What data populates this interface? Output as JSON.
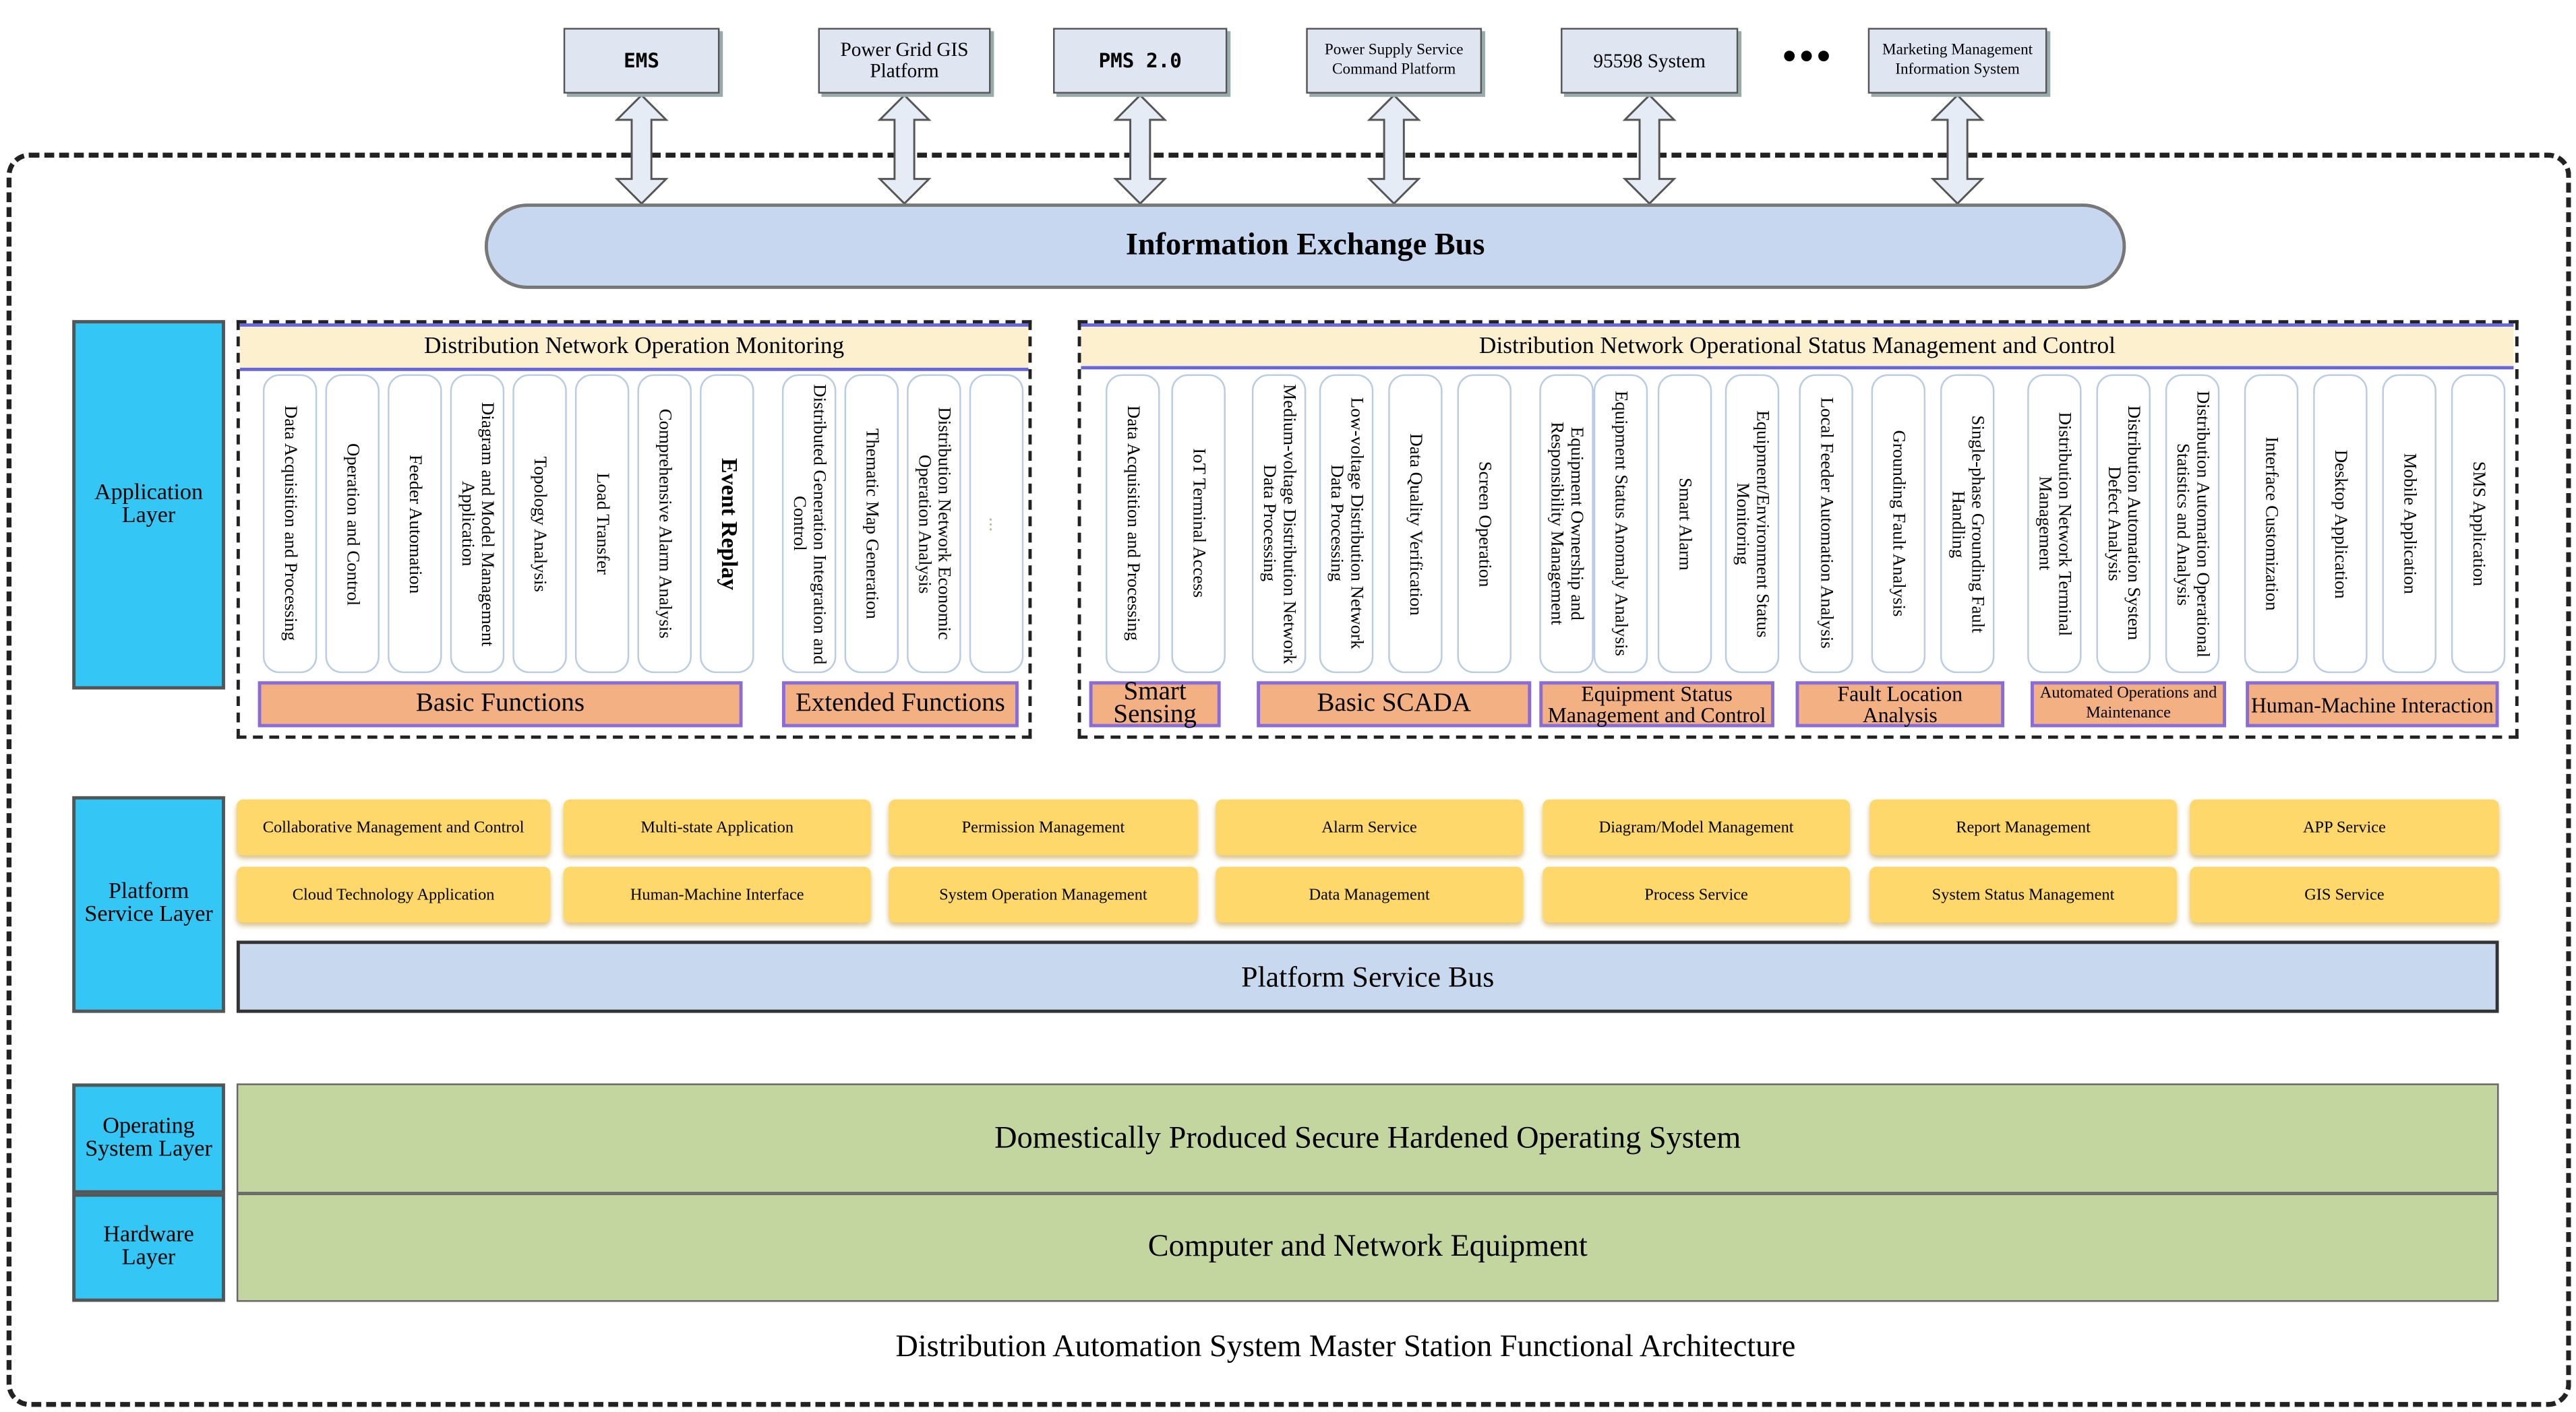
{
  "external_systems": [
    {
      "label": "EMS"
    },
    {
      "label": "Power Grid GIS Platform"
    },
    {
      "label": "PMS 2.0"
    },
    {
      "label": "Power Supply Service Command Platform"
    },
    {
      "label": "95598 System"
    },
    {
      "label": "Marketing Management Information System"
    }
  ],
  "external_more": "•••",
  "information_exchange_bus": "Information Exchange Bus",
  "layers": {
    "application": "Application Layer",
    "platform_service": "Platform Service Layer",
    "operating_system": "Operating System Layer",
    "hardware": "Hardware Layer"
  },
  "application": {
    "monitoring": {
      "title": "Distribution Network Operation Monitoring",
      "categories": [
        {
          "label": "Basic Functions",
          "functions": [
            "Data Acquisition and Processing",
            "Operation and Control",
            "Feeder Automation",
            "Diagram and Model Management Application",
            "Topology Analysis",
            "Load Transfer",
            "Comprehensive Alarm Analysis",
            "Event Replay"
          ]
        },
        {
          "label": "Extended Functions",
          "functions": [
            "Distributed Generation Integration and Control",
            "Thematic Map Generation",
            "Distribution Network Economic Operation Analysis",
            "..."
          ]
        }
      ]
    },
    "status_management": {
      "title": "Distribution Network Operational Status Management and Control",
      "categories": [
        {
          "label": "Smart Sensing",
          "functions": [
            "Data Acquisition and Processing",
            "IoT Terminal Access"
          ]
        },
        {
          "label": "Basic SCADA",
          "functions": [
            "Medium-voltage Distribution Network Data Processing",
            "Low-voltage Distribution Network Data Processing",
            "Data Quality Verification",
            "Screen Operation"
          ]
        },
        {
          "label": "Equipment Status Management and Control",
          "functions": [
            "Equipment Ownership and Responsibility Management",
            "Equipment Status Anomaly Analysis",
            "Smart Alarm",
            "Equipment/Environment Status Monitoring"
          ]
        },
        {
          "label": "Fault Location Analysis",
          "functions": [
            "Local Feeder Automation Analysis",
            "Grounding Fault Analysis",
            "Single-phase Grounding Fault Handling"
          ]
        },
        {
          "label": "Automated Operations and Maintenance",
          "functions": [
            "Distribution Network Terminal Management",
            "Distribution Automation System Defect Analysis",
            "Distribution Automation Operational Statistics and Analysis"
          ]
        },
        {
          "label": "Human-Machine Interaction",
          "functions": [
            "Interface Customization",
            "Desktop Application",
            "Mobile Application",
            "SMS Application"
          ]
        }
      ]
    }
  },
  "platform_services": [
    [
      "Collaborative Management and Control",
      "Multi-state Application",
      "Permission Management",
      "Alarm Service",
      "Diagram/Model Management",
      "Report Management",
      "APP Service"
    ],
    [
      "Cloud Technology Application",
      "Human-Machine Interface",
      "System Operation Management",
      "Data Management",
      "Process Service",
      "System Status Management",
      "GIS Service"
    ]
  ],
  "platform_service_bus": "Platform Service Bus",
  "operating_system": "Domestically Produced Secure Hardened Operating System",
  "hardware": "Computer and Network Equipment",
  "caption": "Distribution Automation System Master Station Functional Architecture"
}
